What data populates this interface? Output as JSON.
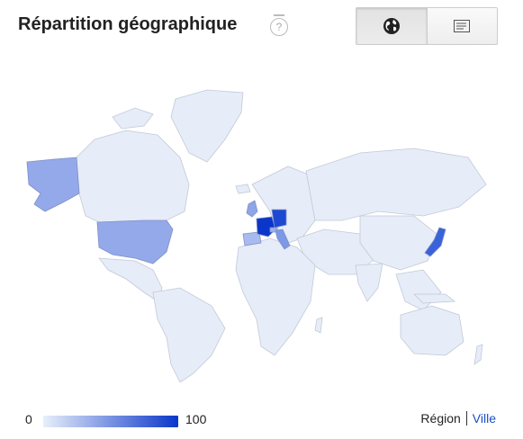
{
  "header": {
    "title": "Répartition géographique",
    "help_symbol": "?",
    "view_toggle": {
      "active": "map",
      "buttons": [
        {
          "name": "map",
          "icon": "globe-icon"
        },
        {
          "name": "list",
          "icon": "list-icon"
        }
      ]
    }
  },
  "map": {
    "base_color": "#e6ecf8",
    "border_color": "#c2c9d6",
    "highlighted_countries": [
      {
        "country": "France",
        "level": 100,
        "color": "#0a36c9"
      },
      {
        "country": "Germany",
        "level": 85,
        "color": "#1d48d2"
      },
      {
        "country": "Japan",
        "level": 78,
        "color": "#3a62d9"
      },
      {
        "country": "Italy",
        "level": 55,
        "color": "#7c98e6"
      },
      {
        "country": "United Kingdom",
        "level": 45,
        "color": "#8ea5e8"
      },
      {
        "country": "United States",
        "level": 40,
        "color": "#93a9ea"
      },
      {
        "country": "Spain",
        "level": 30,
        "color": "#a9baee"
      },
      {
        "country": "Switzerland",
        "level": 35,
        "color": "#9db0ec"
      }
    ]
  },
  "legend": {
    "min": "0",
    "max": "100",
    "gradient_start": "#e8effa",
    "gradient_end": "#0a36c9"
  },
  "scope": {
    "region_label": "Région",
    "city_label": "Ville"
  }
}
